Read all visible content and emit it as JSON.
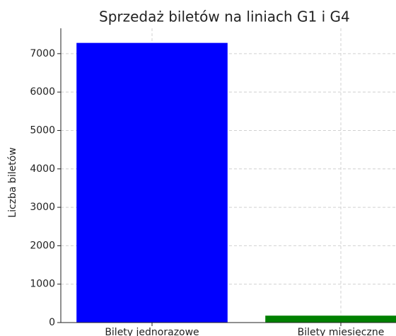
{
  "chart_data": {
    "type": "bar",
    "title": "Sprzedaż biletów na liniach G1 i G4",
    "ylabel": "Liczba biletów",
    "categories": [
      "Bilety jednorazowe",
      "Bilety miesięczne"
    ],
    "values": [
      7280,
      180
    ],
    "colors": [
      "#0000ff",
      "#008000"
    ],
    "ylim": [
      0,
      7660
    ],
    "yticks": [
      0,
      1000,
      2000,
      3000,
      4000,
      5000,
      6000,
      7000
    ],
    "grid": true
  }
}
